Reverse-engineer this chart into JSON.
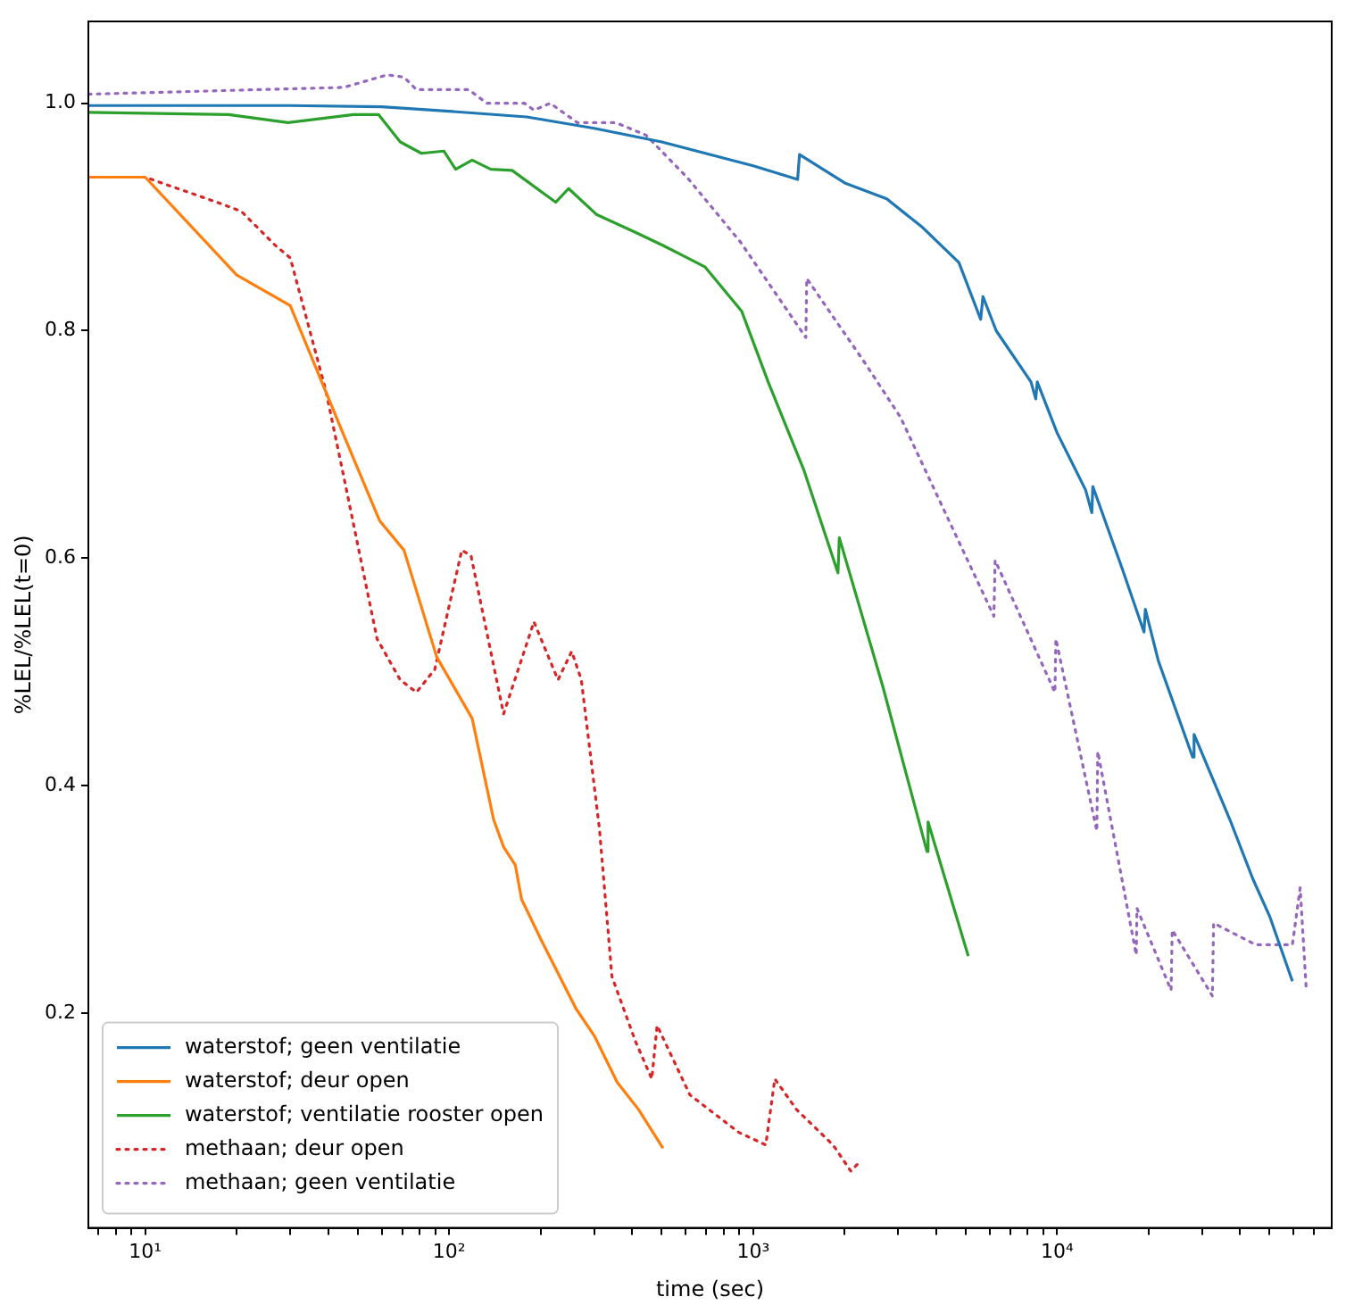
{
  "chart_data": {
    "type": "line",
    "xlabel": "time (sec)",
    "ylabel": "%LEL/%LEL(t=0)",
    "log": "x",
    "grid": false,
    "legend": "bottom left",
    "marker": "none",
    "xlim": [
      6.5,
      80000
    ],
    "ylim": [
      0.011,
      1.072
    ],
    "xticks": [
      {
        "value": 7,
        "label": null
      },
      {
        "value": 8,
        "label": null
      },
      {
        "value": 9,
        "label": null
      },
      {
        "value": 10,
        "label": "10¹"
      },
      {
        "value": 20,
        "label": null
      },
      {
        "value": 30,
        "label": null
      },
      {
        "value": 40,
        "label": null
      },
      {
        "value": 50,
        "label": null
      },
      {
        "value": 60,
        "label": null
      },
      {
        "value": 70,
        "label": null
      },
      {
        "value": 80,
        "label": null
      },
      {
        "value": 90,
        "label": null
      },
      {
        "value": 100,
        "label": "10²"
      },
      {
        "value": 200,
        "label": null
      },
      {
        "value": 300,
        "label": null
      },
      {
        "value": 400,
        "label": null
      },
      {
        "value": 500,
        "label": null
      },
      {
        "value": 600,
        "label": null
      },
      {
        "value": 700,
        "label": null
      },
      {
        "value": 800,
        "label": null
      },
      {
        "value": 900,
        "label": null
      },
      {
        "value": 1000,
        "label": "10³"
      },
      {
        "value": 2000,
        "label": null
      },
      {
        "value": 3000,
        "label": null
      },
      {
        "value": 4000,
        "label": null
      },
      {
        "value": 5000,
        "label": null
      },
      {
        "value": 6000,
        "label": null
      },
      {
        "value": 7000,
        "label": null
      },
      {
        "value": 8000,
        "label": null
      },
      {
        "value": 9000,
        "label": null
      },
      {
        "value": 10000,
        "label": "10⁴"
      },
      {
        "value": 20000,
        "label": null
      },
      {
        "value": 30000,
        "label": null
      },
      {
        "value": 40000,
        "label": null
      },
      {
        "value": 50000,
        "label": null
      },
      {
        "value": 60000,
        "label": null
      },
      {
        "value": 70000,
        "label": null
      }
    ],
    "yticks": [
      0.2,
      0.4,
      0.6,
      0.8,
      {
        "value": 1,
        "label": "1.0"
      }
    ],
    "series": [
      {
        "name": "waterstof; geen ventilatie",
        "color": "#1f77b4",
        "line_style": "solid",
        "x": [
          6.5,
          30,
          60,
          100,
          180,
          300,
          500,
          1000,
          1400,
          1420,
          2000,
          2750,
          3600,
          4750,
          5600,
          5700,
          6300,
          8200,
          8500,
          8600,
          10000,
          12400,
          13000,
          13100,
          16400,
          19300,
          19500,
          21500,
          27900,
          28200,
          37000,
          44000,
          50000,
          59400
        ],
        "values": [
          0.998,
          0.998,
          0.997,
          0.993,
          0.988,
          0.978,
          0.966,
          0.945,
          0.933,
          0.955,
          0.93,
          0.916,
          0.891,
          0.86,
          0.81,
          0.83,
          0.8,
          0.755,
          0.74,
          0.755,
          0.71,
          0.66,
          0.64,
          0.663,
          0.59,
          0.535,
          0.555,
          0.51,
          0.425,
          0.445,
          0.37,
          0.318,
          0.285,
          0.228
        ]
      },
      {
        "name": "waterstof; deur open",
        "color": "#ff7f0e",
        "line_style": "solid",
        "x": [
          6.5,
          10,
          20,
          30,
          45,
          59,
          71,
          91,
          119,
          140,
          151,
          165,
          173,
          200,
          261,
          300,
          357,
          420,
          505
        ],
        "values": [
          0.935,
          0.935,
          0.849,
          0.822,
          0.708,
          0.633,
          0.607,
          0.513,
          0.459,
          0.37,
          0.346,
          0.33,
          0.3,
          0.265,
          0.204,
          0.18,
          0.139,
          0.115,
          0.081
        ]
      },
      {
        "name": "waterstof; ventilatie rooster open",
        "color": "#2ca02c",
        "line_style": "solid",
        "x": [
          6.5,
          18.8,
          29.5,
          48.4,
          58.6,
          69,
          81,
          96,
          105,
          119,
          137,
          161,
          224,
          247,
          306,
          414,
          505,
          695,
          917,
          1120,
          1470,
          1900,
          1920,
          2670,
          3730,
          3760,
          5100
        ],
        "values": [
          0.992,
          0.99,
          0.983,
          0.99,
          0.99,
          0.966,
          0.956,
          0.958,
          0.942,
          0.95,
          0.942,
          0.941,
          0.913,
          0.925,
          0.902,
          0.886,
          0.875,
          0.856,
          0.817,
          0.755,
          0.677,
          0.587,
          0.618,
          0.487,
          0.342,
          0.368,
          0.25
        ]
      },
      {
        "name": "methaan; deur open",
        "color": "#d62728",
        "line_style": "dotted",
        "x": [
          6.5,
          10,
          17.2,
          20.7,
          26.8,
          30,
          34,
          39.3,
          45.2,
          57.9,
          69,
          78,
          89.6,
          110,
          118,
          151,
          190,
          228,
          253,
          272,
          312,
          343,
          410,
          464,
          483,
          619,
          896,
          1100,
          1178,
          1389,
          1830,
          2094,
          2240
        ],
        "values": [
          0.935,
          0.935,
          0.913,
          0.905,
          0.875,
          0.864,
          0.81,
          0.747,
          0.669,
          0.529,
          0.493,
          0.482,
          0.502,
          0.607,
          0.602,
          0.463,
          0.544,
          0.493,
          0.518,
          0.493,
          0.362,
          0.232,
          0.175,
          0.142,
          0.189,
          0.128,
          0.095,
          0.084,
          0.142,
          0.115,
          0.084,
          0.061,
          0.069
        ]
      },
      {
        "name": "methaan; geen ventilatie",
        "color": "#9467bd",
        "line_style": "dotted",
        "x": [
          6.5,
          45,
          62.6,
          71,
          78,
          116,
          133,
          177,
          190,
          215,
          264,
          353,
          444,
          610,
          908,
          1490,
          1500,
          2340,
          3050,
          4030,
          6190,
          6250,
          9830,
          9900,
          13500,
          13600,
          18200,
          18300,
          23700,
          23900,
          32400,
          32700,
          45000,
          59400,
          63000,
          66000
        ],
        "values": [
          1.008,
          1.014,
          1.025,
          1.023,
          1.012,
          1.012,
          1.0,
          1.0,
          0.994,
          1.0,
          0.983,
          0.983,
          0.972,
          0.934,
          0.878,
          0.794,
          0.846,
          0.771,
          0.724,
          0.655,
          0.549,
          0.598,
          0.482,
          0.529,
          0.36,
          0.43,
          0.251,
          0.292,
          0.22,
          0.273,
          0.215,
          0.279,
          0.26,
          0.26,
          0.31,
          0.22
        ]
      }
    ]
  }
}
